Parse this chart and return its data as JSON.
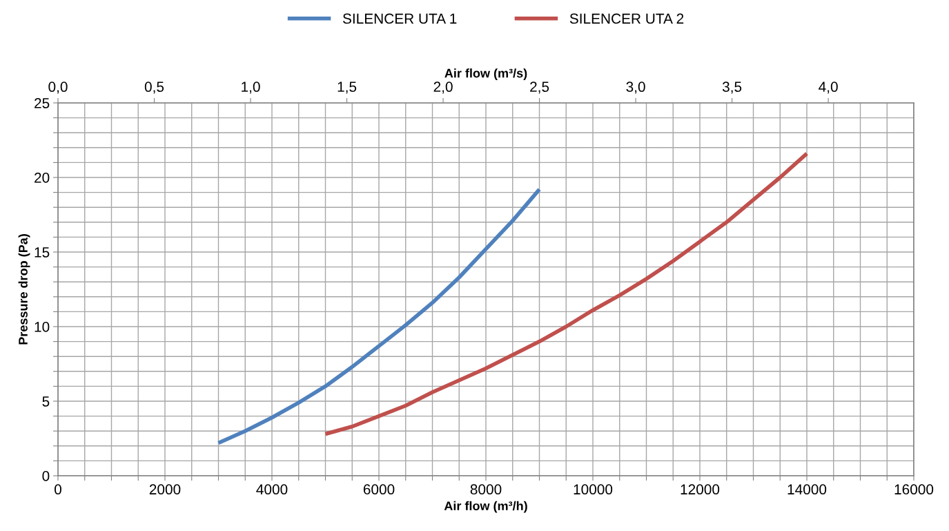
{
  "chart_data": {
    "type": "line",
    "xlabel": "Air flow (m³/h)",
    "ylabel": "Pressure drop (Pa)",
    "x2label": "Air flow (m³/s)",
    "series": [
      {
        "name": "SILENCER UTA 1",
        "color": "#4f81bd",
        "x": [
          3000,
          3500,
          4000,
          4500,
          5000,
          5500,
          6000,
          6500,
          7000,
          7500,
          8000,
          8500,
          9000
        ],
        "values": [
          2.2,
          3.0,
          3.9,
          4.9,
          6.0,
          7.3,
          8.7,
          10.1,
          11.6,
          13.3,
          15.2,
          17.1,
          19.2
        ]
      },
      {
        "name": "SILENCER UTA 2",
        "color": "#c0504d",
        "x": [
          5000,
          5500,
          6000,
          6500,
          7000,
          7500,
          8000,
          8500,
          9000,
          9500,
          10000,
          10500,
          11000,
          11500,
          12000,
          12500,
          13000,
          13500,
          14000
        ],
        "values": [
          2.8,
          3.3,
          4.0,
          4.7,
          5.6,
          6.4,
          7.2,
          8.1,
          9.0,
          10.0,
          11.1,
          12.1,
          13.2,
          14.4,
          15.7,
          17.0,
          18.5,
          20.0,
          21.6
        ]
      }
    ],
    "xlim": [
      0,
      16000
    ],
    "xticks": [
      0,
      {
        "value": 500,
        "label": null
      },
      {
        "value": 1000,
        "label": null
      },
      {
        "value": 1500,
        "label": null
      },
      2000,
      {
        "value": 2500,
        "label": null
      },
      {
        "value": 3000,
        "label": null
      },
      {
        "value": 3500,
        "label": null
      },
      4000,
      {
        "value": 4500,
        "label": null
      },
      {
        "value": 5000,
        "label": null
      },
      {
        "value": 5500,
        "label": null
      },
      6000,
      {
        "value": 6500,
        "label": null
      },
      {
        "value": 7000,
        "label": null
      },
      {
        "value": 7500,
        "label": null
      },
      8000,
      {
        "value": 8500,
        "label": null
      },
      {
        "value": 9000,
        "label": null
      },
      {
        "value": 9500,
        "label": null
      },
      10000,
      {
        "value": 10500,
        "label": null
      },
      {
        "value": 11000,
        "label": null
      },
      {
        "value": 11500,
        "label": null
      },
      12000,
      {
        "value": 12500,
        "label": null
      },
      {
        "value": 13000,
        "label": null
      },
      {
        "value": 13500,
        "label": null
      },
      14000,
      {
        "value": 14500,
        "label": null
      },
      {
        "value": 15000,
        "label": null
      },
      {
        "value": 15500,
        "label": null
      },
      16000
    ],
    "ylim": [
      0,
      25
    ],
    "yticks": [
      0,
      {
        "value": 1,
        "label": null
      },
      {
        "value": 2,
        "label": null
      },
      {
        "value": 3,
        "label": null
      },
      {
        "value": 4,
        "label": null
      },
      5,
      {
        "value": 6,
        "label": null
      },
      {
        "value": 7,
        "label": null
      },
      {
        "value": 8,
        "label": null
      },
      {
        "value": 9,
        "label": null
      },
      10,
      {
        "value": 11,
        "label": null
      },
      {
        "value": 12,
        "label": null
      },
      {
        "value": 13,
        "label": null
      },
      {
        "value": 14,
        "label": null
      },
      15,
      {
        "value": 16,
        "label": null
      },
      {
        "value": 17,
        "label": null
      },
      {
        "value": 18,
        "label": null
      },
      {
        "value": 19,
        "label": null
      },
      20,
      {
        "value": 21,
        "label": null
      },
      {
        "value": 22,
        "label": null
      },
      {
        "value": 23,
        "label": null
      },
      {
        "value": 24,
        "label": null
      },
      25
    ],
    "x2lim": [
      0,
      4.444
    ],
    "x2ticks": [
      {
        "value": 0,
        "label": "0,0"
      },
      {
        "value": 0.5,
        "label": "0,5"
      },
      {
        "value": 1,
        "label": "1,0"
      },
      {
        "value": 1.5,
        "label": "1,5"
      },
      {
        "value": 2,
        "label": "2,0"
      },
      {
        "value": 2.5,
        "label": "2,5"
      },
      {
        "value": 3,
        "label": "3,0"
      },
      {
        "value": 3.5,
        "label": "3,5"
      },
      {
        "value": 4,
        "label": "4,0"
      }
    ],
    "grid": true,
    "legend": "top",
    "marker": "none",
    "line_style": "solid"
  }
}
